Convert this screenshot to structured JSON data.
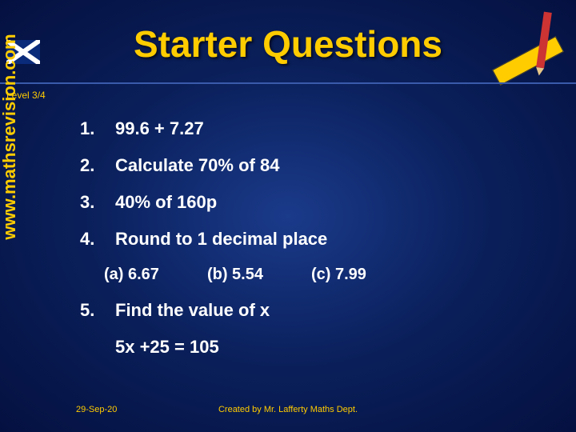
{
  "title": "Starter Questions",
  "level": "Level 3/4",
  "sidebar_url": "www.mathsrevision.com",
  "questions": {
    "q1": {
      "num": "1.",
      "text": "99.6 + 7.27"
    },
    "q2": {
      "num": "2.",
      "text": "Calculate 70% of 84"
    },
    "q3": {
      "num": "3.",
      "text": "40% of 160p"
    },
    "q4": {
      "num": "4.",
      "text": "Round to 1 decimal place"
    },
    "q4sub": {
      "a": "(a) 6.67",
      "b": "(b) 5.54",
      "c": "(c) 7.99"
    },
    "q5": {
      "num": "5.",
      "text": "Find the value of x",
      "eq": "5x +25 = 105"
    }
  },
  "footer": {
    "date": "29-Sep-20",
    "credit": "Created by Mr. Lafferty Maths Dept."
  },
  "colors": {
    "title_color": "#ffcc00",
    "text_color": "#ffffff",
    "bg_center": "#1a3a8a",
    "bg_edge": "#041040"
  }
}
